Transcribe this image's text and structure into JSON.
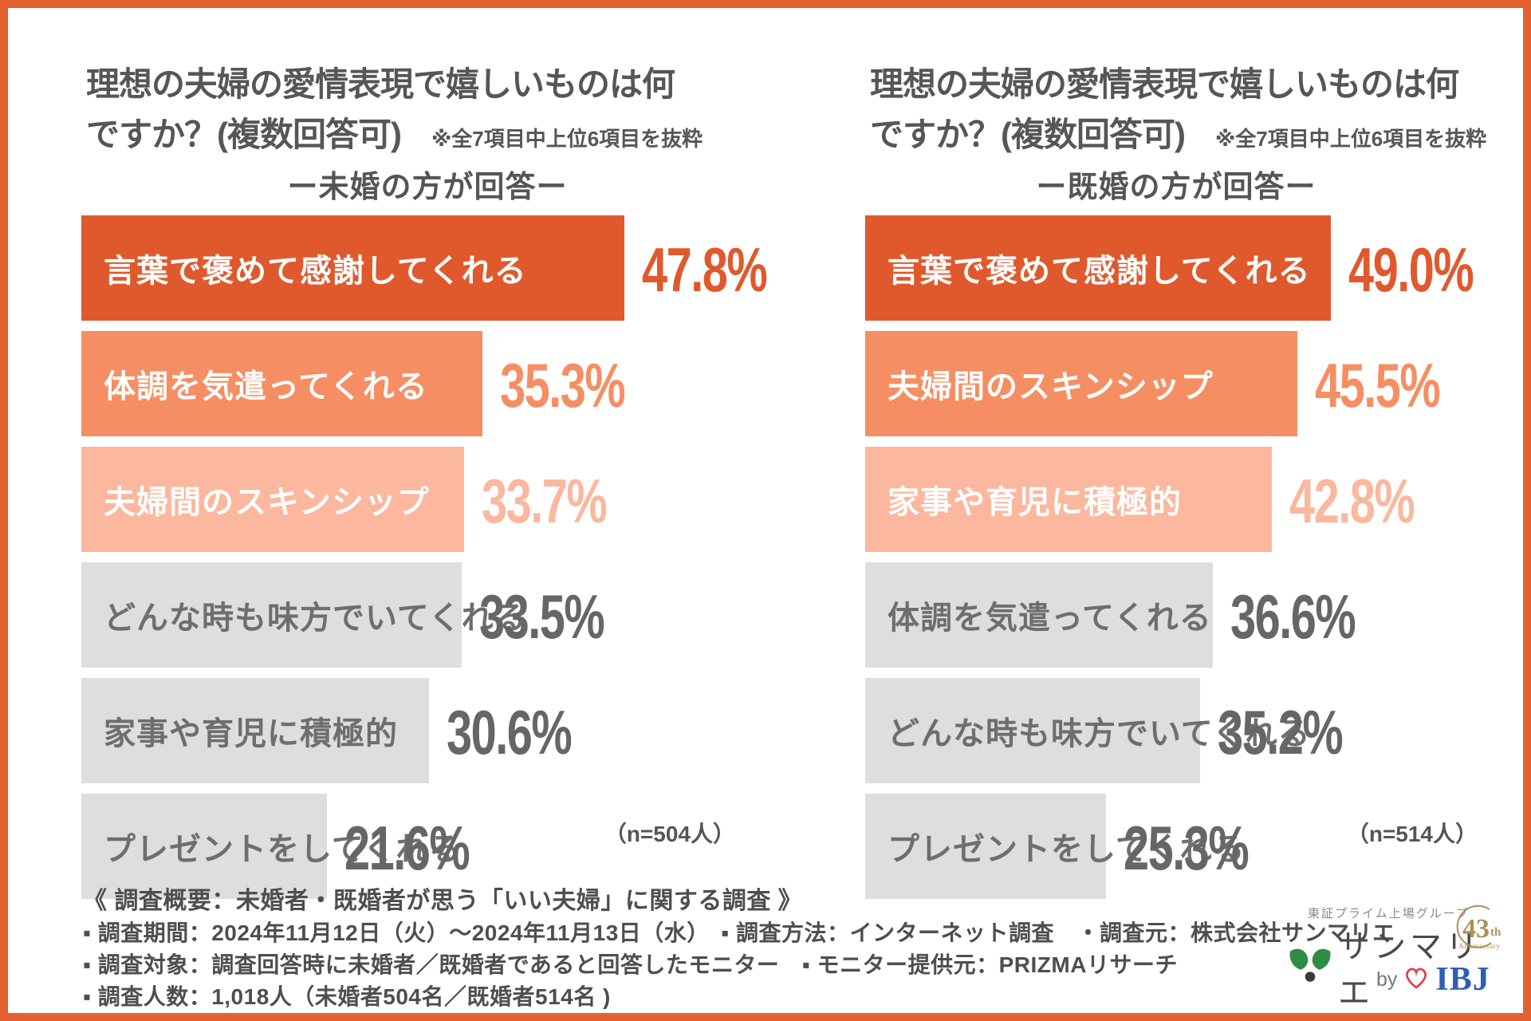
{
  "display": {
    "title_line1": "理想の夫婦の愛情表現で嬉しいものは何",
    "title_line2": "ですか？(複数回答可)"
  },
  "chart_data": [
    {
      "type": "bar",
      "orientation": "horizontal",
      "title": "理想の夫婦の愛情表現で嬉しいものは何ですか？(複数回答可)",
      "note": "※全7項目中上位6項目を抜粋",
      "subtitle": "ー未婚の方が回答ー",
      "sample_label": "（n=504人）",
      "unit": "%",
      "xlim": [
        0,
        61
      ],
      "grid": false,
      "legend": "none",
      "categories": [
        "言葉で褒めて感謝してくれる",
        "体調を気遣ってくれる",
        "夫婦間のスキンシップ",
        "どんな時も味方でいてくれる",
        "家事や育児に積極的",
        "プレゼントをしてくれる"
      ],
      "values": [
        47.8,
        35.3,
        33.7,
        33.5,
        30.6,
        21.6
      ],
      "bar_colors": [
        "#E0592C",
        "#F68E63",
        "#FBB89E",
        "#DEDEDE",
        "#DEDEDE",
        "#DEDEDE"
      ],
      "category_label_colors": [
        "#FFFFFF",
        "#FFFFFF",
        "#FFFFFF",
        "#6E6E6E",
        "#6E6E6E",
        "#6E6E6E"
      ],
      "value_label_colors": [
        "#E0592C",
        "#F68E63",
        "#FBB89E",
        "#666666",
        "#666666",
        "#666666"
      ]
    },
    {
      "type": "bar",
      "orientation": "horizontal",
      "title": "理想の夫婦の愛情表現で嬉しいものは何ですか？(複数回答可)",
      "note": "※全7項目中上位6項目を抜粋",
      "subtitle": "ー既婚の方が回答ー",
      "sample_label": "（n=514人）",
      "unit": "%",
      "xlim": [
        0,
        65
      ],
      "grid": false,
      "legend": "none",
      "categories": [
        "言葉で褒めて感謝してくれる",
        "夫婦間のスキンシップ",
        "家事や育児に積極的",
        "体調を気遣ってくれる",
        "どんな時も味方でいてくれる",
        "プレゼントをしてくれる"
      ],
      "values": [
        49.0,
        45.5,
        42.8,
        36.6,
        35.2,
        25.3
      ],
      "bar_colors": [
        "#E0592C",
        "#F68E63",
        "#FBB89E",
        "#DEDEDE",
        "#DEDEDE",
        "#DEDEDE"
      ],
      "category_label_colors": [
        "#FFFFFF",
        "#FFFFFF",
        "#FFFFFF",
        "#6E6E6E",
        "#6E6E6E",
        "#6E6E6E"
      ],
      "value_label_colors": [
        "#E0592C",
        "#F68E63",
        "#FBB89E",
        "#666666",
        "#666666",
        "#666666"
      ]
    }
  ],
  "footer": {
    "line1": "《 調査概要：未婚者・既婚者が思う「いい夫婦」に関する調査 》",
    "line2": "▪ 調査期間：2024年11月12日（火）～2024年11月13日（水）　▪ 調査方法：インターネット調査　・調査元：株式会社サンマリエ",
    "line3": "▪ 調査対象：調査回答時に未婚者／既婚者であると回答したモニター　▪ モニター提供元：PRIZMAリサーチ",
    "line4": "▪ 調査人数：1,018人（未婚者504名／既婚者514名 )"
  },
  "logo": {
    "tagline": "東証プライム上場グループ",
    "brand": "サンマリエ",
    "badge_number": "43",
    "badge_suffix": "th",
    "badge_caption": "Anniversary",
    "by_label": "by",
    "company": "IBJ"
  },
  "colors": {
    "frame_border": "#E4602F",
    "rank1_orange": "#E0592C",
    "rank2_coral": "#F68E63",
    "rank3_salmon": "#FBB89E",
    "gray_bar": "#DEDEDE",
    "text_dark_gray": "#565656",
    "logo_green": "#2E8C46",
    "logo_gold": "#AD905A",
    "ibj_blue": "#2E5FB5",
    "heart_red": "#E0394E"
  }
}
